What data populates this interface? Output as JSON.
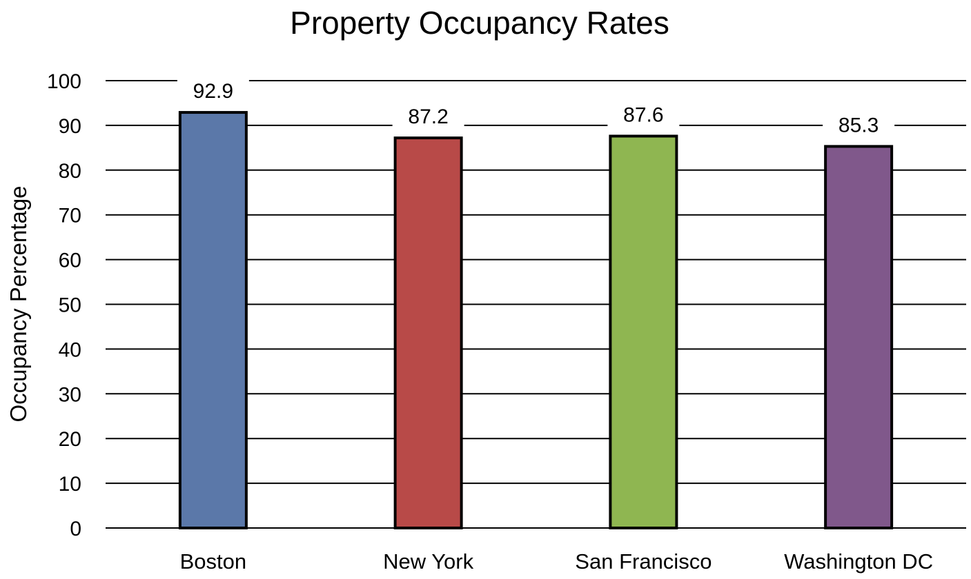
{
  "chart_data": {
    "type": "bar",
    "title": "Property Occupancy Rates",
    "xlabel": "",
    "ylabel": "Occupancy Percentage",
    "categories": [
      "Boston",
      "New York",
      "San Francisco",
      "Washington DC"
    ],
    "values": [
      92.9,
      87.2,
      87.6,
      85.3
    ],
    "data_labels": [
      "92.9",
      "87.2",
      "87.6",
      "85.3"
    ],
    "colors": [
      "#5b78a9",
      "#b84a48",
      "#8fb651",
      "#80588b"
    ],
    "ylim": [
      0,
      100
    ],
    "yticks": [
      0,
      10,
      20,
      30,
      40,
      50,
      60,
      70,
      80,
      90,
      100
    ],
    "grid": true,
    "legend": "none"
  }
}
